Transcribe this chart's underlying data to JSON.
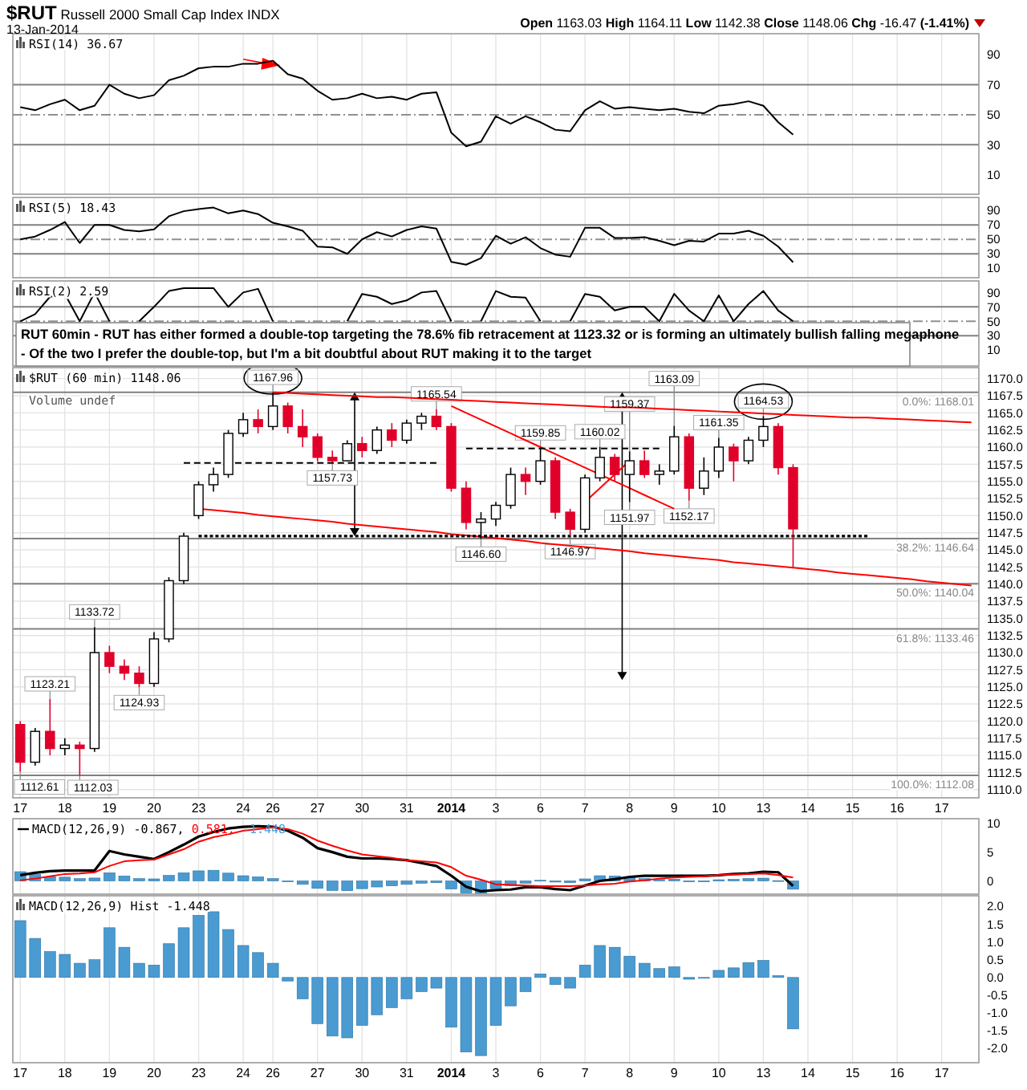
{
  "chart_data": [
    {
      "type": "other",
      "title": "$RUT Russell 2000 Small Cap Index INDX",
      "subtitle": "13-Jan-2014",
      "annotations": [
        "Open 1163.03 High 1164.11 Low 1142.38 Close 1148.06 Chg -16.47 (-1.41%)",
        "RUT 60min - RUT has either formed a double-top targeting the 78.6% fib retracement at 1123.32 or is forming an ultimately bullish falling megaphone",
        "- Of the two I prefer the double-top, but I'm a bit doubtful about RUT making it to the target"
      ]
    },
    {
      "type": "line",
      "title": "RSI(14) 36.67",
      "categories": [
        "17",
        null,
        null,
        "18",
        null,
        null,
        "19",
        null,
        null,
        "20",
        null,
        null,
        "23",
        null,
        null,
        "24",
        null,
        "26",
        null,
        null,
        "27",
        null,
        null,
        "30",
        null,
        null,
        "31",
        null,
        null,
        "2014",
        null,
        null,
        "3",
        null,
        null,
        "6",
        null,
        null,
        "7",
        null,
        null,
        "8",
        null,
        null,
        "9",
        null,
        null,
        "10",
        null,
        null,
        "13",
        null,
        null,
        "14",
        null,
        null,
        "15",
        null,
        null,
        "16",
        null,
        null,
        "17",
        null,
        null
      ],
      "ylim": [
        -3,
        104
      ],
      "yticks": [
        10,
        30,
        50,
        70,
        90
      ],
      "tick_labels": "y",
      "grid": "x",
      "ref_lines": [
        {
          "axis": "y",
          "value": 70,
          "color": "#808080"
        },
        {
          "axis": "y",
          "value": 50,
          "color": "#909090",
          "line_style": "dashed"
        },
        {
          "axis": "y",
          "value": 30,
          "color": "#808080"
        }
      ],
      "series": [
        {
          "color": "#000000",
          "values": [
            55,
            53,
            57,
            60,
            53,
            56,
            70,
            64,
            61,
            63,
            73,
            76,
            81,
            82,
            82,
            84,
            84,
            86,
            77,
            74,
            66,
            60,
            61,
            64,
            61,
            62,
            60,
            64,
            65,
            38,
            29,
            32,
            49,
            44,
            49,
            45,
            40,
            39,
            53,
            59,
            54,
            55,
            54,
            53,
            54,
            52,
            51,
            56,
            57,
            59,
            56,
            45,
            36.67,
            null,
            null,
            null,
            null,
            null,
            null,
            null,
            null,
            null,
            null,
            null,
            null
          ]
        }
      ]
    },
    {
      "type": "line",
      "title": "RSI(5) 18.43",
      "categories": [
        "17",
        null,
        null,
        "18",
        null,
        null,
        "19",
        null,
        null,
        "20",
        null,
        null,
        "23",
        null,
        null,
        "24",
        null,
        "26",
        null,
        null,
        "27",
        null,
        null,
        "30",
        null,
        null,
        "31",
        null,
        null,
        "2014",
        null,
        null,
        "3",
        null,
        null,
        "6",
        null,
        null,
        "7",
        null,
        null,
        "8",
        null,
        null,
        "9",
        null,
        null,
        "10",
        null,
        null,
        "13",
        null,
        null,
        "14",
        null,
        null,
        "15",
        null,
        null,
        "16",
        null,
        null,
        "17",
        null,
        null
      ],
      "ylim": [
        -3,
        108
      ],
      "yticks": [
        10,
        30,
        50,
        70,
        90
      ],
      "tick_labels": "y",
      "grid": "x",
      "ref_lines": [
        {
          "axis": "y",
          "value": 70,
          "color": "#808080"
        },
        {
          "axis": "y",
          "value": 50,
          "color": "#909090",
          "line_style": "dashed"
        },
        {
          "axis": "y",
          "value": 30,
          "color": "#808080"
        }
      ],
      "series": [
        {
          "color": "#000000",
          "values": [
            50,
            54,
            63,
            74,
            45,
            70,
            70,
            63,
            61,
            64,
            82,
            89,
            92,
            94,
            86,
            90,
            85,
            73,
            68,
            62,
            40,
            39,
            30,
            50,
            60,
            54,
            63,
            68,
            65,
            19,
            15,
            24,
            55,
            44,
            53,
            38,
            29,
            26,
            66,
            66,
            52,
            52,
            53,
            48,
            42,
            48,
            47,
            58,
            58,
            62,
            55,
            40,
            18.43,
            null,
            null,
            null,
            null,
            null,
            null,
            null,
            null,
            null,
            null,
            null,
            null
          ]
        }
      ]
    },
    {
      "type": "line",
      "title": "RSI(2) 2.59",
      "categories": [
        "17",
        null,
        null,
        "18",
        null,
        null,
        "19",
        null,
        null,
        "20",
        null,
        null,
        "23",
        null,
        null,
        "24",
        null,
        "26",
        null,
        null,
        "27",
        null,
        null,
        "30",
        null,
        null,
        "31",
        null,
        null,
        "2014",
        null,
        null,
        "3",
        null,
        null,
        "6",
        null,
        null,
        "7",
        null,
        null,
        "8",
        null,
        null,
        "9",
        null,
        null,
        "10",
        null,
        null,
        "13",
        null,
        null,
        "14",
        null,
        null,
        "15",
        null,
        null,
        "16",
        null,
        null,
        "17",
        null,
        null
      ],
      "ylim": [
        -12,
        106
      ],
      "yticks": [
        10,
        30,
        50,
        70,
        90
      ],
      "tick_labels": "y",
      "grid": "x",
      "ref_lines": [
        {
          "axis": "y",
          "value": 70,
          "color": "#808080"
        },
        {
          "axis": "y",
          "value": 50,
          "color": "#909090",
          "line_style": "dashed"
        },
        {
          "axis": "y",
          "value": 30,
          "color": "#808080"
        }
      ],
      "series": [
        {
          "color": "#000000",
          "values": [
            50,
            60,
            84,
            88,
            50,
            90,
            50,
            null,
            50,
            70,
            92,
            96,
            96,
            96,
            70,
            90,
            95,
            50,
            null,
            null,
            null,
            null,
            50,
            88,
            84,
            74,
            79,
            90,
            92,
            50,
            null,
            50,
            92,
            84,
            83,
            50,
            null,
            50,
            88,
            84,
            65,
            70,
            70,
            50,
            88,
            65,
            50,
            86,
            50,
            74,
            92,
            65,
            50,
            null,
            null,
            null,
            null,
            null,
            null,
            null,
            null,
            null,
            null,
            null,
            null
          ]
        }
      ]
    },
    {
      "type": "candlestick",
      "title": "$RUT (60 min) 1148.06",
      "categories": [
        "17",
        null,
        null,
        "18",
        null,
        null,
        "19",
        null,
        null,
        "20",
        null,
        null,
        "23",
        null,
        null,
        "24",
        null,
        "26",
        null,
        null,
        "27",
        null,
        null,
        "30",
        null,
        null,
        "31",
        null,
        null,
        "2014",
        null,
        null,
        "3",
        null,
        null,
        "6",
        null,
        null,
        "7",
        null,
        null,
        "8",
        null,
        null,
        "9",
        null,
        null,
        "10",
        null,
        null,
        "13",
        null,
        null,
        "14",
        null,
        null,
        "15",
        null,
        null,
        "16",
        null,
        null,
        "17",
        null,
        null
      ],
      "ylim": [
        1108.8,
        1171.6
      ],
      "yticks": [
        {
          "value": 1110,
          "label": "1110.0"
        },
        {
          "value": 1112.5,
          "label": "1112.5"
        },
        {
          "value": 1115,
          "label": "1115.0"
        },
        {
          "value": 1117.5,
          "label": "1117.5"
        },
        {
          "value": 1120,
          "label": "1120.0"
        },
        {
          "value": 1122.5,
          "label": "1122.5"
        },
        {
          "value": 1125,
          "label": "1125.0"
        },
        {
          "value": 1127.5,
          "label": "1127.5"
        },
        {
          "value": 1130,
          "label": "1130.0"
        },
        {
          "value": 1132.5,
          "label": "1132.5"
        },
        {
          "value": 1135,
          "label": "1135.0"
        },
        {
          "value": 1137.5,
          "label": "1137.5"
        },
        {
          "value": 1140,
          "label": "1140.0"
        },
        {
          "value": 1142.5,
          "label": "1142.5"
        },
        {
          "value": 1145,
          "label": "1145.0"
        },
        {
          "value": 1147.5,
          "label": "1147.5"
        },
        {
          "value": 1150,
          "label": "1150.0"
        },
        {
          "value": 1152.5,
          "label": "1152.5"
        },
        {
          "value": 1155,
          "label": "1155.0"
        },
        {
          "value": 1157.5,
          "label": "1157.5"
        },
        {
          "value": 1160,
          "label": "1160.0"
        },
        {
          "value": 1162.5,
          "label": "1162.5"
        },
        {
          "value": 1165,
          "label": "1165.0"
        },
        {
          "value": 1167.5,
          "label": "1167.5"
        },
        {
          "value": 1170,
          "label": "1170.0"
        }
      ],
      "grid": true,
      "ohlc": [
        [
          1119.5,
          1120,
          1112.61,
          1114
        ],
        [
          1114,
          1119,
          1113.5,
          1118.5
        ],
        [
          1118.5,
          1123.21,
          1115,
          1116
        ],
        [
          1116,
          1117.5,
          1115,
          1116.5
        ],
        [
          1116.5,
          1117,
          1112.03,
          1116
        ],
        [
          1116,
          1133.72,
          1115.5,
          1130
        ],
        [
          1130,
          1131,
          1127,
          1128
        ],
        [
          1128,
          1129,
          1126,
          1127
        ],
        [
          1127,
          1128,
          1124.93,
          1125.5
        ],
        [
          1125.5,
          1133,
          1125,
          1132
        ],
        [
          1132,
          1141,
          1131.5,
          1140.5
        ],
        [
          1140.5,
          1147.5,
          1140,
          1147
        ],
        [
          1150,
          1155,
          1149.5,
          1154.5
        ],
        [
          1154.5,
          1157,
          1153.5,
          1156
        ],
        [
          1156,
          1162.5,
          1155.5,
          1162
        ],
        [
          1162,
          1165,
          1161.5,
          1164
        ],
        [
          1164,
          1165.5,
          1162,
          1163
        ],
        [
          1163,
          1167.96,
          1162.5,
          1166
        ],
        [
          1166,
          1166.5,
          1162,
          1163
        ],
        [
          1163,
          1165.5,
          1160,
          1161.5
        ],
        [
          1161.5,
          1162,
          1157.9,
          1158.5
        ],
        [
          1158.5,
          1159.5,
          1157.73,
          1158
        ],
        [
          1158,
          1161,
          1157.9,
          1160.5
        ],
        [
          1160.5,
          1161.5,
          1158.5,
          1159.5
        ],
        [
          1159.5,
          1163,
          1159,
          1162.5
        ],
        [
          1162.5,
          1163.5,
          1160,
          1161
        ],
        [
          1161,
          1164,
          1160.5,
          1163.5
        ],
        [
          1163.5,
          1165,
          1162.5,
          1164.5
        ],
        [
          1164.5,
          1165.54,
          1162.5,
          1163
        ],
        [
          1163,
          1163.5,
          1153.5,
          1154
        ],
        [
          1154,
          1155,
          1148,
          1149
        ],
        [
          1149,
          1150.5,
          1146.6,
          1149.5
        ],
        [
          1149.5,
          1152,
          1148.5,
          1151.5
        ],
        [
          1151.5,
          1157,
          1151,
          1156
        ],
        [
          1156,
          1157,
          1153,
          1155
        ],
        [
          1155,
          1159.85,
          1154.5,
          1158
        ],
        [
          1158,
          1158.5,
          1149.5,
          1150.5
        ],
        [
          1150.5,
          1151,
          1146.97,
          1148
        ],
        [
          1148,
          1156,
          1147.5,
          1155.5
        ],
        [
          1155.5,
          1160.02,
          1155,
          1158.5
        ],
        [
          1158.5,
          1159,
          1155,
          1156
        ],
        [
          1156,
          1159.37,
          1151.97,
          1158
        ],
        [
          1158,
          1159.5,
          1155.5,
          1156
        ],
        [
          1156,
          1157.5,
          1154.5,
          1156.5
        ],
        [
          1156.5,
          1163.09,
          1156,
          1161.5
        ],
        [
          1161.5,
          1162,
          1152.17,
          1154
        ],
        [
          1154,
          1158.5,
          1153,
          1156.5
        ],
        [
          1156.5,
          1161.35,
          1155.5,
          1160
        ],
        [
          1160,
          1160.5,
          1155,
          1158
        ],
        [
          1158,
          1161.5,
          1157.5,
          1161
        ],
        [
          1161,
          1164.53,
          1160,
          1163
        ],
        [
          1163,
          1163.5,
          1156,
          1157
        ],
        [
          1157,
          1157.5,
          1142.38,
          1148.06
        ],
        null,
        null,
        null,
        null,
        null,
        null,
        null,
        null,
        null,
        null,
        null,
        null
      ],
      "series": [
        {
          "type": "line",
          "color": "#ff0000",
          "values": [
            null,
            null,
            null,
            null,
            null,
            null,
            null,
            null,
            null,
            null,
            null,
            null,
            null,
            null,
            null,
            null,
            null,
            1168.0,
            1167.9,
            1167.8,
            1167.7,
            1167.6,
            1167.5,
            1167.4,
            1167.3,
            1167.3,
            1167.2,
            1167.1,
            1167.0,
            1166.9,
            1166.8,
            1166.7,
            1166.6,
            1166.5,
            1166.4,
            1166.3,
            1166.2,
            1166.1,
            1166.0,
            1165.9,
            1165.8,
            1165.8,
            1165.7,
            1165.6,
            1165.5,
            1165.4,
            1165.3,
            1165.2,
            1165.1,
            1165.0,
            1164.9,
            1164.8,
            1164.7,
            1164.6,
            1164.5,
            1164.4,
            1164.3,
            1164.3,
            1164.2,
            1164.1,
            1164.0,
            1163.9,
            1163.8,
            1163.7,
            1163.6
          ]
        },
        {
          "type": "line",
          "color": "#ff0000",
          "values": [
            null,
            null,
            null,
            null,
            null,
            null,
            null,
            null,
            null,
            null,
            null,
            null,
            1151.0,
            1150.8,
            1150.6,
            1150.4,
            1150.1,
            1149.9,
            1149.7,
            1149.5,
            1149.3,
            1149.1,
            1148.8,
            1148.6,
            1148.4,
            1148.2,
            1148.0,
            1147.8,
            1147.6,
            1147.3,
            1147.1,
            1146.9,
            1146.7,
            1146.5,
            1146.3,
            1146.0,
            1145.8,
            1145.6,
            1145.4,
            1145.2,
            1145.0,
            1144.8,
            1144.5,
            1144.3,
            1144.1,
            1143.9,
            1143.7,
            1143.5,
            1143.2,
            1143.0,
            1142.8,
            1142.6,
            1142.4,
            1142.2,
            1142.0,
            1141.7,
            1141.5,
            1141.3,
            1141.1,
            1140.9,
            1140.7,
            1140.4,
            1140.2,
            1140.0,
            1139.8
          ]
        },
        {
          "type": "line",
          "color": "#ff0000",
          "values": [
            null,
            null,
            null,
            null,
            null,
            null,
            null,
            null,
            null,
            null,
            null,
            null,
            null,
            null,
            null,
            null,
            null,
            null,
            null,
            null,
            null,
            null,
            null,
            null,
            null,
            null,
            null,
            null,
            null,
            1166,
            1165,
            1164,
            1163,
            1162,
            1161,
            1160,
            1159,
            1158,
            1157,
            1156,
            1155,
            1154,
            1153,
            1152,
            1151,
            null,
            null,
            null,
            null,
            null,
            null,
            null,
            null,
            null,
            null,
            null,
            null,
            null,
            null,
            null,
            null,
            null,
            null,
            null,
            null
          ]
        },
        {
          "type": "line",
          "color": "#ff0000",
          "values": [
            null,
            null,
            null,
            null,
            null,
            null,
            null,
            null,
            null,
            null,
            null,
            null,
            null,
            null,
            null,
            null,
            null,
            null,
            null,
            null,
            null,
            null,
            null,
            null,
            null,
            null,
            null,
            null,
            null,
            null,
            null,
            null,
            null,
            null,
            null,
            null,
            null,
            null,
            1152,
            1154,
            1156,
            1158,
            null,
            null,
            null,
            null,
            null,
            null,
            null,
            null,
            null,
            null,
            null,
            null,
            null,
            null,
            null,
            null,
            null,
            null,
            null,
            null,
            null,
            null,
            null
          ]
        },
        {
          "type": "line",
          "color": "#000000",
          "line_style": "dashed",
          "values": [
            null,
            null,
            null,
            null,
            null,
            null,
            null,
            null,
            null,
            null,
            null,
            1157.7,
            1157.7,
            1157.7,
            1157.7,
            1157.7,
            1157.7,
            1157.7,
            1157.7,
            1157.7,
            1157.7,
            1157.7,
            1157.7,
            1157.7,
            1157.7,
            1157.7,
            1157.7,
            1157.7,
            1157.7,
            null,
            null,
            null,
            null,
            null,
            null,
            null,
            null,
            null,
            null,
            null,
            null,
            null,
            null,
            null,
            null,
            null,
            null,
            null,
            null,
            null,
            null,
            null,
            null,
            null,
            null,
            null,
            null,
            null,
            null,
            null,
            null,
            null,
            null,
            null,
            null
          ]
        },
        {
          "type": "line",
          "color": "#000000",
          "line_style": "dashed",
          "values": [
            null,
            null,
            null,
            null,
            null,
            null,
            null,
            null,
            null,
            null,
            null,
            null,
            null,
            null,
            null,
            null,
            null,
            null,
            null,
            null,
            null,
            null,
            null,
            null,
            null,
            null,
            null,
            null,
            null,
            null,
            1159.8,
            1159.8,
            1159.8,
            1159.8,
            1159.8,
            1159.8,
            1159.8,
            1159.8,
            1159.8,
            1159.8,
            1159.8,
            1159.8,
            1159.8,
            1159.8,
            null,
            null,
            null,
            null,
            null,
            null,
            null,
            null,
            null,
            null,
            null,
            null,
            null,
            null,
            null,
            null,
            null,
            null,
            null,
            null,
            null
          ]
        },
        {
          "type": "line",
          "color": "#000000",
          "line_style": "dotted",
          "values": [
            null,
            null,
            null,
            null,
            null,
            null,
            null,
            null,
            null,
            null,
            null,
            null,
            1147,
            1147,
            1147,
            1147,
            1147,
            1147,
            1147,
            1147,
            1147,
            1147,
            1147,
            1147,
            1147,
            1147,
            1147,
            1147,
            1147,
            1147,
            1147,
            1147,
            1147,
            1147,
            1147,
            1147,
            1147,
            1147,
            1147,
            1147,
            1147,
            1147,
            1147,
            1147,
            1147,
            1147,
            1147,
            1147,
            1147,
            1147,
            1147,
            1147,
            1147,
            1147,
            1147,
            1147,
            1147,
            1147,
            null,
            null,
            null,
            null,
            null,
            null,
            null
          ]
        }
      ],
      "ref_lines": [
        {
          "axis": "y",
          "value": 1168.01,
          "label": "0.0%: 1168.01",
          "color": "#808080"
        },
        {
          "axis": "y",
          "value": 1146.64,
          "label": "38.2%: 1146.64",
          "color": "#808080"
        },
        {
          "axis": "y",
          "value": 1140.04,
          "label": "50.0%: 1140.04",
          "color": "#808080"
        },
        {
          "axis": "y",
          "value": 1133.46,
          "label": "61.8%: 1133.46",
          "color": "#808080"
        },
        {
          "axis": "y",
          "value": 1112.08,
          "label": "100.0%: 1112.08",
          "color": "#808080"
        }
      ],
      "annotations": [
        "Volume undef",
        {
          "text": "1112.61",
          "y": 1112.61
        },
        {
          "text": "1123.21",
          "y": 1123.21
        },
        {
          "text": "1112.03",
          "y": 1112.03
        },
        {
          "text": "1133.72",
          "y": 1133.72
        },
        {
          "text": "1124.93",
          "y": 1124.93
        },
        {
          "text": "1167.96",
          "y": 1167.96
        },
        {
          "text": "1157.73",
          "y": 1157.73
        },
        {
          "text": "1165.54",
          "y": 1165.54
        },
        {
          "text": "1146.60",
          "y": 1146.6
        },
        {
          "text": "1159.85",
          "y": 1159.85
        },
        {
          "text": "1146.97",
          "y": 1146.97
        },
        {
          "text": "1160.02",
          "y": 1160.02
        },
        {
          "text": "1159.37",
          "y": 1159.37
        },
        {
          "text": "1151.97",
          "y": 1151.97
        },
        {
          "text": "1163.09",
          "y": 1163.09
        },
        {
          "text": "1152.17",
          "y": 1152.17
        },
        {
          "text": "1161.35",
          "y": 1161.35
        },
        {
          "text": "1164.53",
          "y": 1164.53
        }
      ]
    },
    {
      "type": "line",
      "categories": [
        "17",
        null,
        null,
        "18",
        null,
        null,
        "19",
        null,
        null,
        "20",
        null,
        null,
        "23",
        null,
        null,
        "24",
        null,
        "26",
        null,
        null,
        "27",
        null,
        null,
        "30",
        null,
        null,
        "31",
        null,
        null,
        "2014",
        null,
        null,
        "3",
        null,
        null,
        "6",
        null,
        null,
        "7",
        null,
        null,
        "8",
        null,
        null,
        "9",
        null,
        null,
        "10",
        null,
        null,
        "13",
        null,
        null,
        "14",
        null,
        null,
        "15",
        null,
        null,
        "16",
        null,
        null,
        "17",
        null,
        null
      ],
      "ylim": [
        -2.3,
        10.8
      ],
      "yticks": [
        0,
        5,
        10
      ],
      "tick_labels": "y",
      "grid": "x",
      "legend": "top left",
      "series": [
        {
          "name": "MACD(12,26,9) -0.867,",
          "color": "#000000",
          "values": [
            1.0,
            1.4,
            1.7,
            1.8,
            1.8,
            1.8,
            5.2,
            4.6,
            4.2,
            3.8,
            5.0,
            6.3,
            7.7,
            8.5,
            9.1,
            9.4,
            9.5,
            9.4,
            8.7,
            7.5,
            5.7,
            5.0,
            4.2,
            3.9,
            3.9,
            3.8,
            3.6,
            3.1,
            2.6,
            0.9,
            -1.0,
            -1.8,
            -1.6,
            -1.5,
            -1.1,
            -1.1,
            -1.4,
            -1.6,
            -0.8,
            0.0,
            0.3,
            0.7,
            0.9,
            0.9,
            0.9,
            0.9,
            0.9,
            1.0,
            1.2,
            1.3,
            1.6,
            1.5,
            -0.867,
            null,
            null,
            null,
            null,
            null,
            null,
            null,
            null,
            null,
            null,
            null,
            null
          ]
        },
        {
          "name": "0.581,",
          "color": "#ff0000",
          "values": [
            0.1,
            0.4,
            0.8,
            1.2,
            1.3,
            1.5,
            2.6,
            3.4,
            3.6,
            3.7,
            4.6,
            5.5,
            6.8,
            7.6,
            8.1,
            8.7,
            9.0,
            9.3,
            9.0,
            8.2,
            7.0,
            6.1,
            5.3,
            4.6,
            4.3,
            4.0,
            3.6,
            3.4,
            3.2,
            2.4,
            0.9,
            0.2,
            -0.6,
            -0.7,
            -0.8,
            -0.9,
            -0.9,
            -0.9,
            -0.8,
            -0.6,
            -0.5,
            -0.1,
            0.1,
            0.4,
            0.6,
            0.7,
            0.8,
            1.0,
            1.1,
            1.2,
            1.3,
            1.0,
            0.581,
            null,
            null,
            null,
            null,
            null,
            null,
            null,
            null,
            null,
            null,
            null,
            null
          ]
        },
        {
          "name": "-1.448",
          "type": "bar",
          "color": "#4a9bd1",
          "values": [
            1.6,
            1.1,
            0.73,
            0.65,
            0.4,
            0.5,
            1.4,
            0.85,
            0.4,
            0.35,
            0.95,
            1.4,
            1.75,
            1.85,
            1.35,
            0.9,
            0.7,
            0.4,
            -0.1,
            -0.6,
            -1.3,
            -1.65,
            -1.7,
            -1.35,
            -1.05,
            -0.85,
            -0.6,
            -0.4,
            -0.3,
            -1.4,
            -2.1,
            -2.2,
            -1.35,
            -0.8,
            -0.4,
            0.1,
            -0.2,
            -0.3,
            0.35,
            0.9,
            0.85,
            0.6,
            0.4,
            0.25,
            0.3,
            -0.05,
            0,
            0.2,
            0.27,
            0.42,
            0.48,
            0.05,
            -1.448,
            null,
            null,
            null,
            null,
            null,
            null,
            null,
            null,
            null,
            null,
            null,
            null
          ]
        }
      ]
    },
    {
      "type": "bar",
      "title": "MACD(12,26,9) Hist -1.448",
      "categories": [
        "17",
        null,
        null,
        "18",
        null,
        null,
        "19",
        null,
        null,
        "20",
        null,
        null,
        "23",
        null,
        null,
        "24",
        null,
        "26",
        null,
        null,
        "27",
        null,
        null,
        "30",
        null,
        null,
        "31",
        null,
        null,
        "2014",
        null,
        null,
        "3",
        null,
        null,
        "6",
        null,
        null,
        "7",
        null,
        null,
        "8",
        null,
        null,
        "9",
        null,
        null,
        "10",
        null,
        null,
        "13",
        null,
        null,
        "14",
        null,
        null,
        "15",
        null,
        null,
        "16",
        null,
        null,
        "17",
        null,
        null
      ],
      "ylim": [
        -2.4,
        2.3
      ],
      "yticks": [
        {
          "value": 2,
          "label": "2.0"
        },
        {
          "value": 1.5,
          "label": "1.5"
        },
        {
          "value": 1,
          "label": "1.0"
        },
        {
          "value": 0.5,
          "label": "0.5"
        },
        {
          "value": 0,
          "label": "0.0"
        },
        {
          "value": -0.5,
          "label": "-0.5"
        },
        {
          "value": -1,
          "label": "-1.0"
        },
        {
          "value": -1.5,
          "label": "-1.5"
        },
        {
          "value": -2,
          "label": "-2.0"
        }
      ],
      "grid": "x",
      "series": [
        {
          "color": "#4a9bd1",
          "values": [
            1.6,
            1.1,
            0.73,
            0.65,
            0.4,
            0.5,
            1.4,
            0.85,
            0.4,
            0.35,
            0.95,
            1.4,
            1.75,
            1.85,
            1.35,
            0.9,
            0.7,
            0.4,
            -0.1,
            -0.6,
            -1.3,
            -1.65,
            -1.7,
            -1.35,
            -1.05,
            -0.85,
            -0.6,
            -0.4,
            -0.3,
            -1.4,
            -2.1,
            -2.2,
            -1.35,
            -0.8,
            -0.4,
            0.1,
            -0.2,
            -0.3,
            0.35,
            0.9,
            0.85,
            0.6,
            0.4,
            0.25,
            0.3,
            -0.05,
            0,
            0.2,
            0.27,
            0.42,
            0.48,
            0.05,
            -1.448,
            null,
            null,
            null,
            null,
            null,
            null,
            null,
            null,
            null,
            null,
            null,
            null
          ]
        }
      ]
    }
  ]
}
